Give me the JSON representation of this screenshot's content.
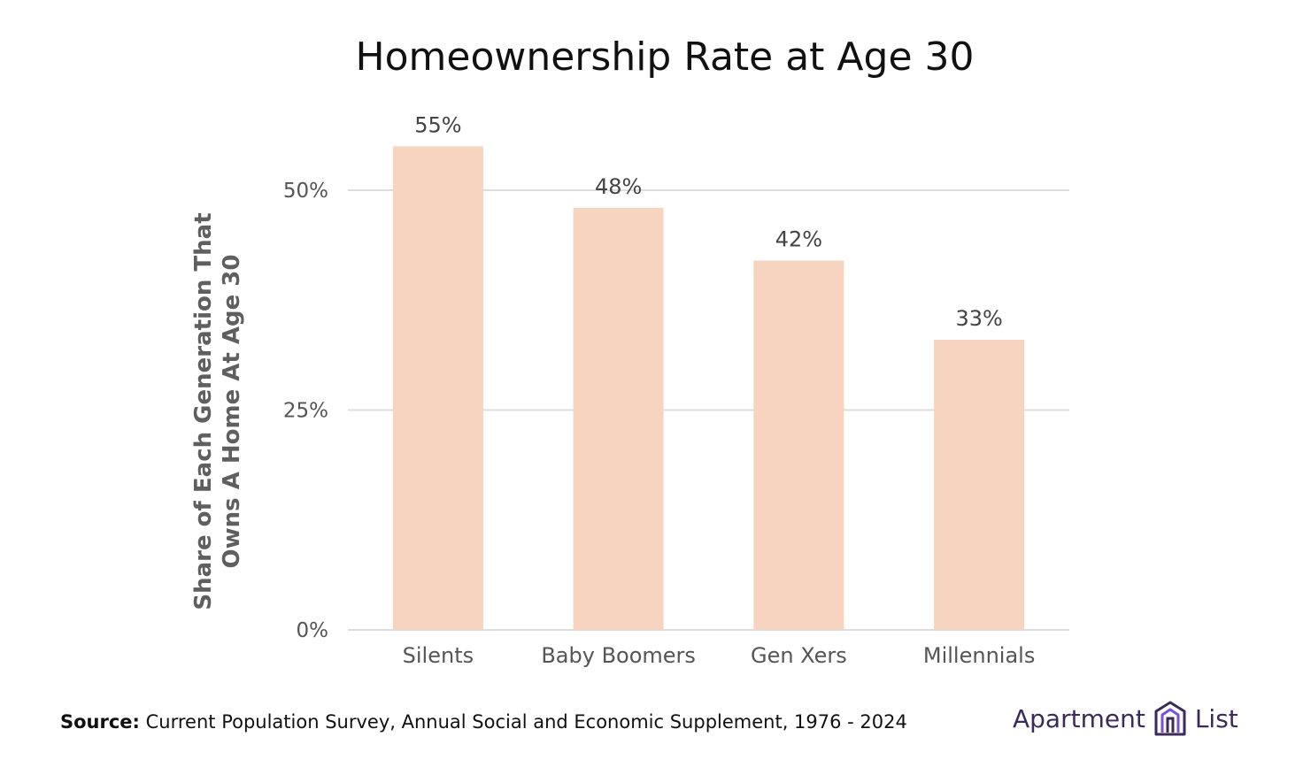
{
  "chart_data": {
    "type": "bar",
    "title": "Homeownership Rate at Age 30",
    "xlabel": "",
    "ylabel": "Share of Each Generation That Owns A Home At Age 30",
    "ylabel_lines": [
      "Share of Each Generation That",
      "Owns A Home At Age 30"
    ],
    "categories": [
      "Silents",
      "Baby Boomers",
      "Gen Xers",
      "Millennials"
    ],
    "values": [
      55,
      48,
      42,
      33
    ],
    "value_labels": [
      "55%",
      "48%",
      "42%",
      "33%"
    ],
    "ylim": [
      0,
      55
    ],
    "yticks": [
      0,
      25,
      50
    ],
    "ytick_labels": [
      "0%",
      "25%",
      "50%"
    ],
    "grid": true,
    "bar_color": "#f6d4c0",
    "grid_color": "#dddddd"
  },
  "footer": {
    "source_label": "Source:",
    "source_text": "Current Population Survey, Annual Social and Economic Supplement, 1976 - 2024"
  },
  "logo": {
    "left_text": "Apartment",
    "right_text": "List",
    "icon": "apartment-list-building-icon",
    "color": "#3b2a5a",
    "accent": "#7b4fd6"
  }
}
